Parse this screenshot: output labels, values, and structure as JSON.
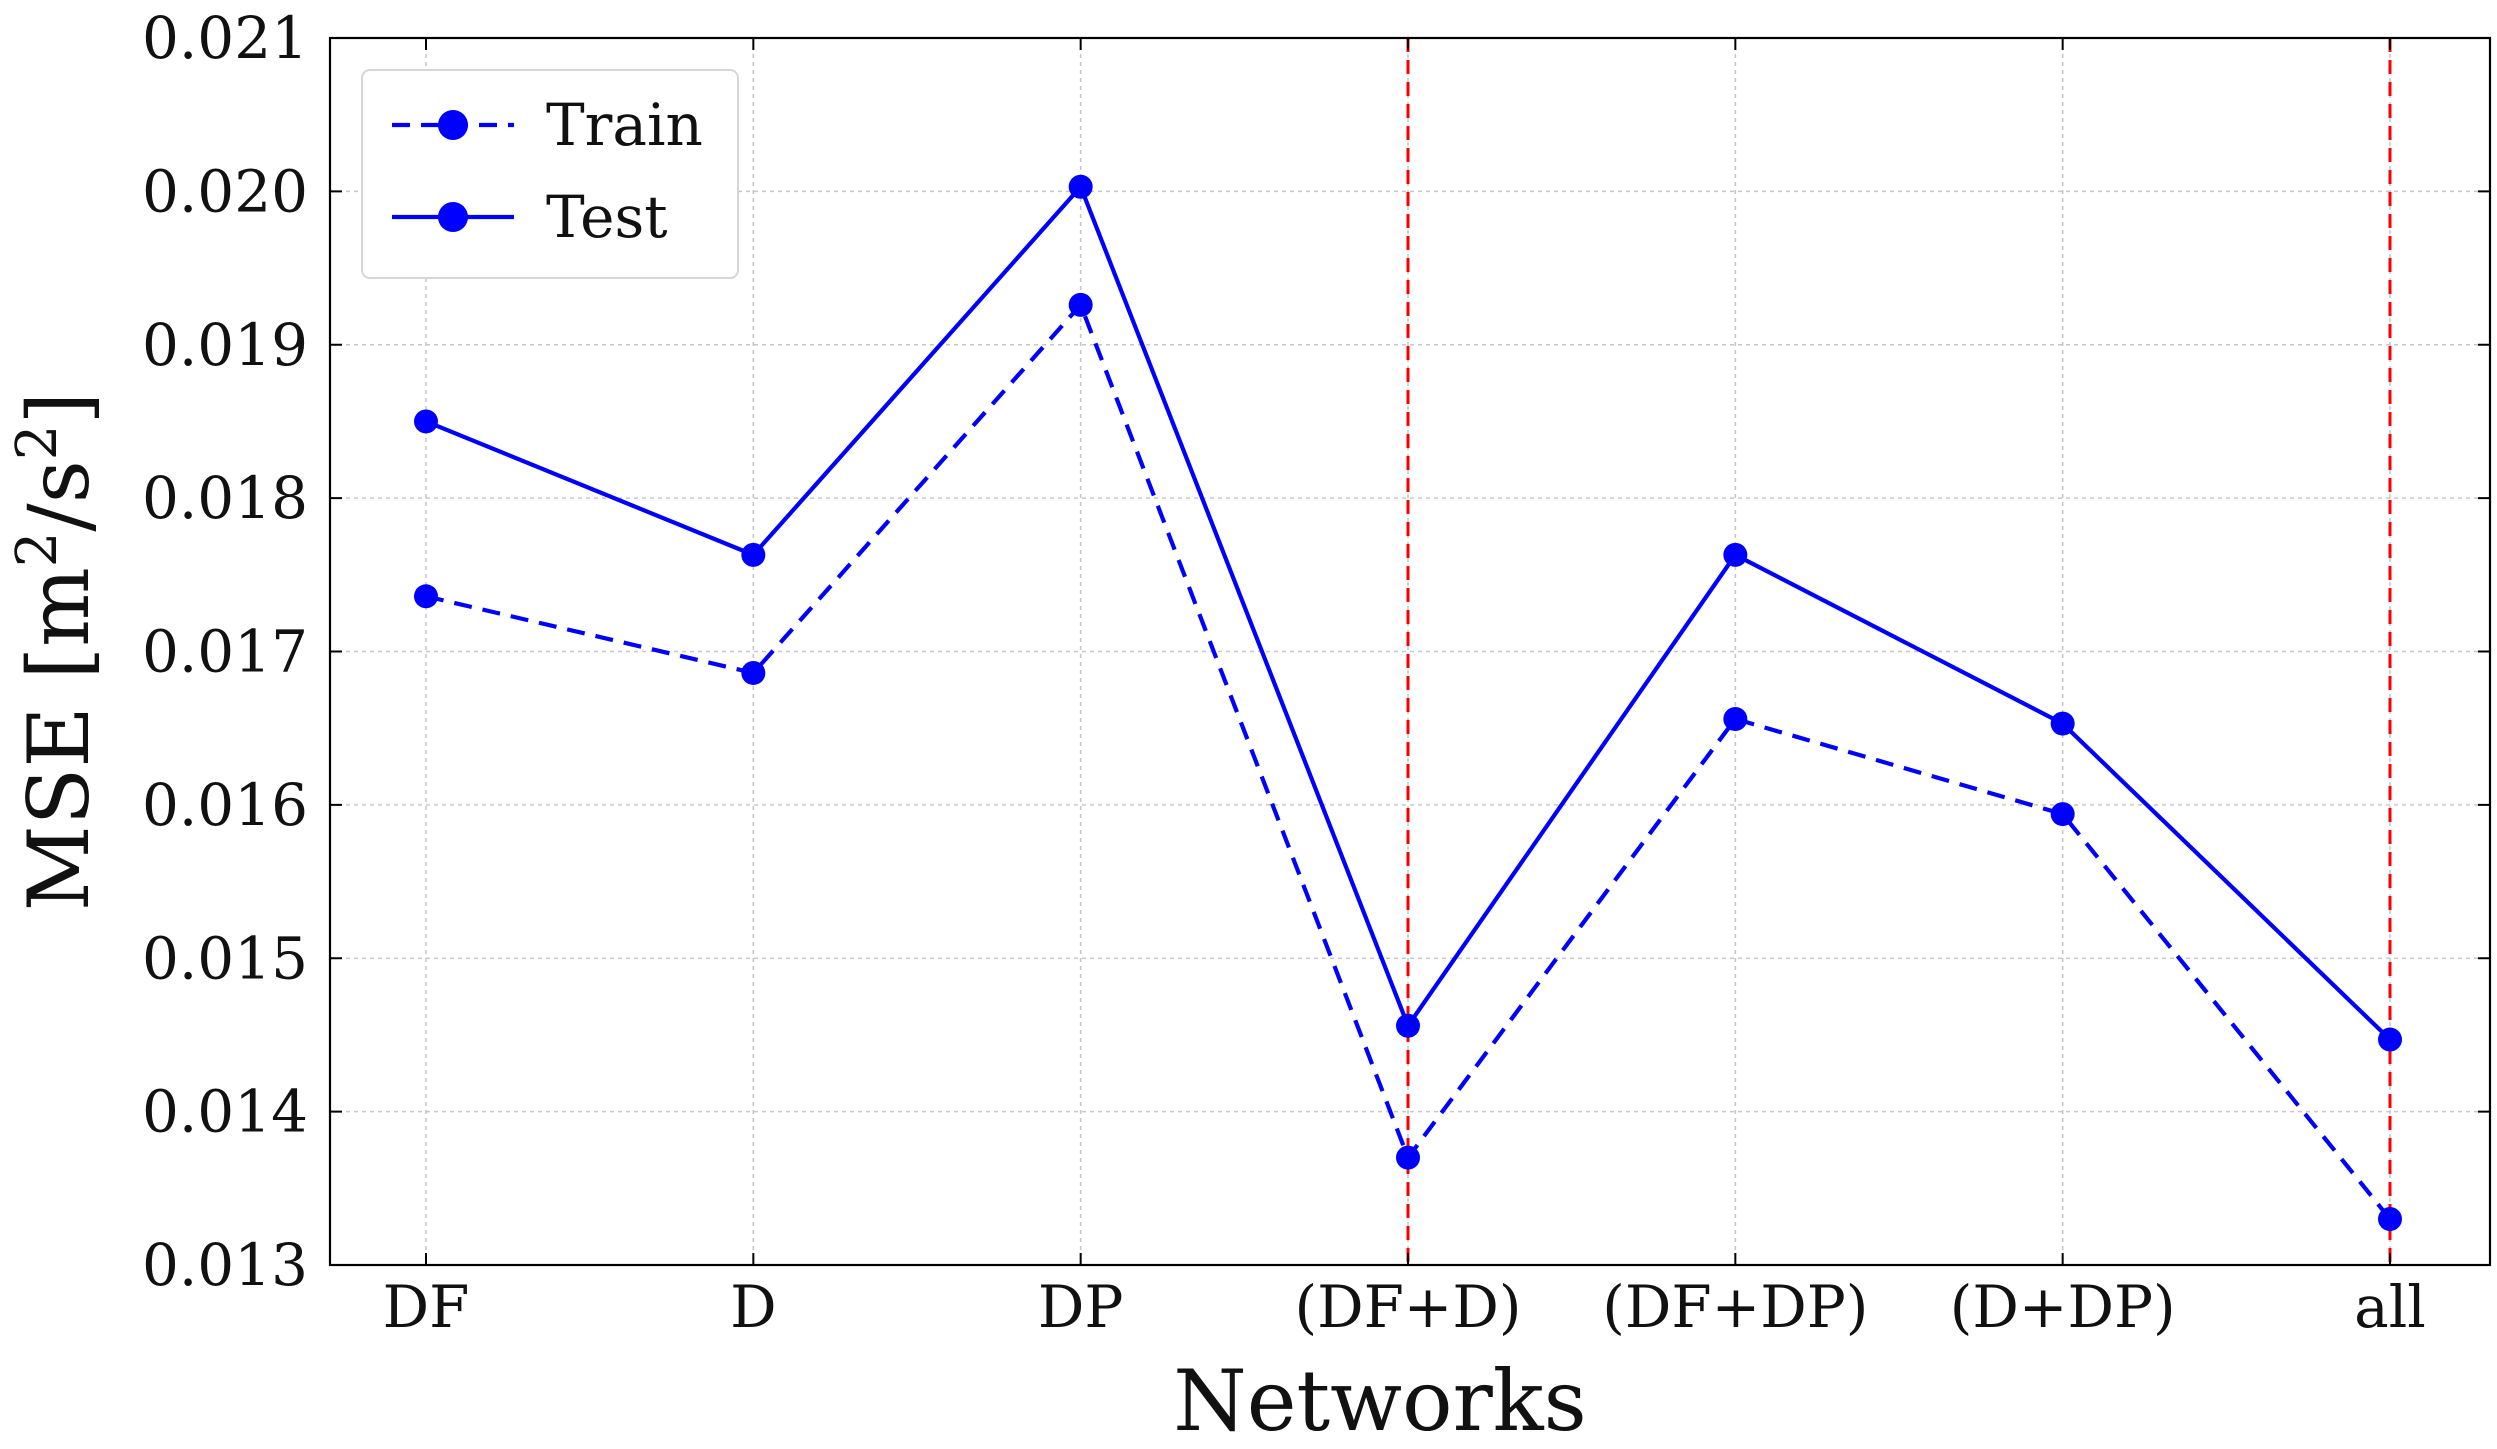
{
  "chart_data": {
    "type": "line",
    "title": "",
    "xlabel": "Networks",
    "ylabel": "MSE [m²/s²]",
    "ylabel_parts": {
      "main": "MSE [m",
      "sup1": "2",
      "mid": "/s",
      "sup2": "2",
      "end": "]"
    },
    "categories": [
      "DF",
      "D",
      "DP",
      "(DF+D)",
      "(DF+DP)",
      "(D+DP)",
      "all"
    ],
    "ylim": [
      0.013,
      0.021
    ],
    "yticks": [
      0.013,
      0.014,
      0.015,
      0.016,
      0.017,
      0.018,
      0.019,
      0.02,
      0.021
    ],
    "ytick_labels": [
      "0.013",
      "0.014",
      "0.015",
      "0.016",
      "0.017",
      "0.018",
      "0.019",
      "0.020",
      "0.021"
    ],
    "grid": true,
    "series": [
      {
        "name": "Train",
        "style": "dashed",
        "color": "#0000ff",
        "values": [
          0.01736,
          0.01686,
          0.01926,
          0.0137,
          0.01656,
          0.01594,
          0.0133
        ]
      },
      {
        "name": "Test",
        "style": "solid",
        "color": "#0000ff",
        "values": [
          0.0185,
          0.01763,
          0.02003,
          0.01456,
          0.01763,
          0.01653,
          0.01447
        ]
      }
    ],
    "vlines": [
      {
        "category": "(DF+D)",
        "color": "#ff0000",
        "style": "dashed"
      },
      {
        "category": "all",
        "color": "#ff0000",
        "style": "dashed"
      }
    ],
    "legend": {
      "position": "top-left",
      "entries": [
        "Train",
        "Test"
      ]
    }
  }
}
